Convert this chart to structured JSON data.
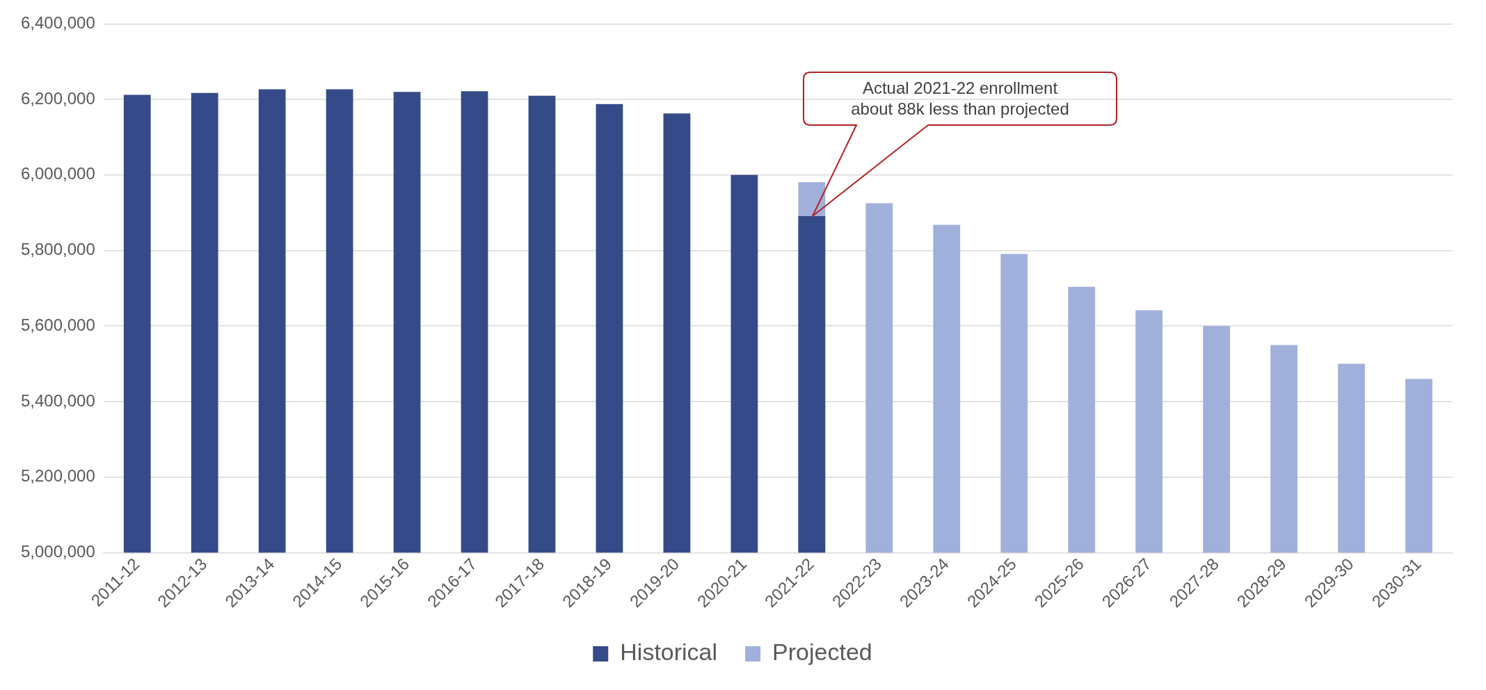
{
  "chart_data": {
    "type": "bar",
    "categories": [
      "2011-12",
      "2012-13",
      "2013-14",
      "2014-15",
      "2015-16",
      "2016-17",
      "2017-18",
      "2018-19",
      "2019-20",
      "2020-21",
      "2021-22",
      "2022-23",
      "2023-24",
      "2024-25",
      "2025-26",
      "2026-27",
      "2027-28",
      "2028-29",
      "2029-30",
      "2030-31"
    ],
    "series": [
      {
        "name": "Historical",
        "color": "#354b89",
        "values": [
          6212000,
          6217000,
          6227000,
          6227000,
          6220000,
          6222000,
          6210000,
          6188000,
          6163000,
          6000000,
          5891000,
          null,
          null,
          null,
          null,
          null,
          null,
          null,
          null,
          null
        ]
      },
      {
        "name": "Projected",
        "color": "#a0b0da",
        "values": [
          null,
          null,
          null,
          null,
          null,
          null,
          null,
          null,
          null,
          null,
          5981000,
          5925000,
          5868000,
          5791000,
          5704000,
          5642000,
          5600000,
          5550000,
          5500000,
          5460000
        ]
      }
    ],
    "ylim": [
      5000000,
      6400000
    ],
    "yticks": [
      {
        "value": 5000000,
        "label": "5,000,000"
      },
      {
        "value": 5200000,
        "label": "5,200,000"
      },
      {
        "value": 5400000,
        "label": "5,400,000"
      },
      {
        "value": 5600000,
        "label": "5,600,000"
      },
      {
        "value": 5800000,
        "label": "5,800,000"
      },
      {
        "value": 6000000,
        "label": "6,000,000"
      },
      {
        "value": 6200000,
        "label": "6,200,000"
      },
      {
        "value": 6400000,
        "label": "6,400,000"
      }
    ],
    "grid": "y",
    "legend": "bottom",
    "annotations": [
      "Actual 2021-22 enrollment\nabout 88k less than projected"
    ]
  }
}
